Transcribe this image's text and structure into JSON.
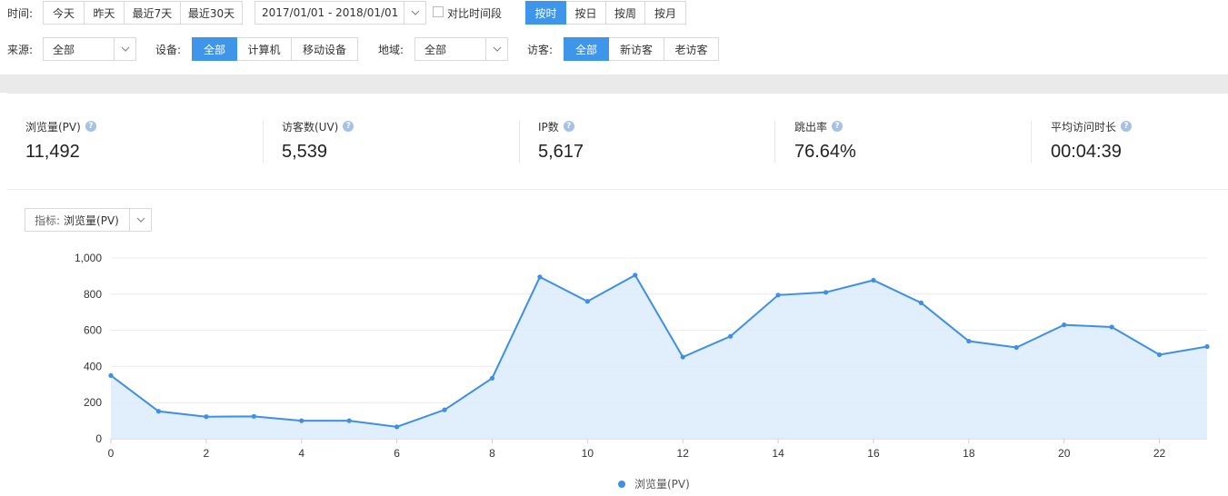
{
  "filters": {
    "time_label": "时间:",
    "time_buttons": [
      "今天",
      "昨天",
      "最近7天",
      "最近30天"
    ],
    "date_range": "2017/01/01 - 2018/01/01",
    "compare_label": "对比时间段",
    "granularity_buttons": [
      "按时",
      "按日",
      "按周",
      "按月"
    ],
    "granularity_active": 0,
    "source_label": "来源:",
    "source_value": "全部",
    "device_label": "设备:",
    "device_buttons": [
      "全部",
      "计算机",
      "移动设备"
    ],
    "device_active": 0,
    "region_label": "地域:",
    "region_value": "全部",
    "visitor_label": "访客:",
    "visitor_buttons": [
      "全部",
      "新访客",
      "老访客"
    ],
    "visitor_active": 0
  },
  "metrics": [
    {
      "name": "浏览量(PV)",
      "value": "11,492"
    },
    {
      "name": "访客数(UV)",
      "value": "5,539"
    },
    {
      "name": "IP数",
      "value": "5,617"
    },
    {
      "name": "跳出率",
      "value": "76.64%"
    },
    {
      "name": "平均访问时长",
      "value": "00:04:39"
    }
  ],
  "indicator": {
    "label": "指标:",
    "value": "浏览量(PV)"
  },
  "chart_data": {
    "type": "area",
    "x": [
      0,
      1,
      2,
      3,
      4,
      5,
      6,
      7,
      8,
      9,
      10,
      11,
      12,
      13,
      14,
      15,
      16,
      17,
      18,
      19,
      20,
      21,
      22,
      23
    ],
    "series": [
      {
        "name": "浏览量(PV)",
        "values": [
          350,
          152,
          122,
          124,
          100,
          100,
          66,
          160,
          335,
          895,
          760,
          905,
          452,
          567,
          795,
          810,
          877,
          752,
          540,
          505,
          630,
          618,
          465,
          510
        ]
      }
    ],
    "xticks": [
      0,
      2,
      4,
      6,
      8,
      10,
      12,
      14,
      16,
      18,
      20,
      22
    ],
    "yticks": [
      0,
      200,
      400,
      600,
      800,
      1000
    ],
    "ytick_labels": [
      "0",
      "200",
      "400",
      "600",
      "800",
      "1,000"
    ],
    "ylim": [
      0,
      1000
    ],
    "xlim": [
      0,
      23
    ],
    "grid": true,
    "legend": "bottom-center",
    "line_color": "#3e8fe6",
    "fill_color": "#dcebfb"
  },
  "colors": {
    "accent": "#3e95ea"
  }
}
